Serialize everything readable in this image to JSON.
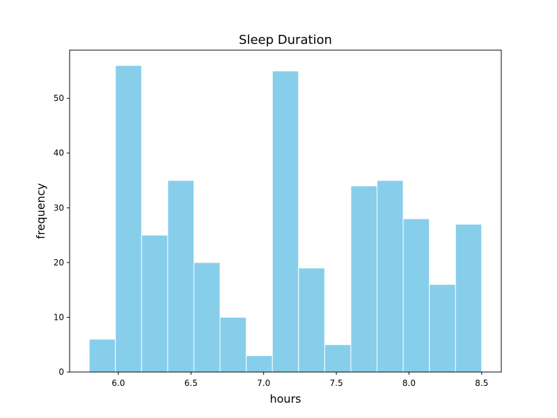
{
  "chart_data": {
    "type": "bar",
    "title": "Sleep Duration",
    "xlabel": "hours",
    "ylabel": "frequency",
    "xlim": [
      5.665,
      8.635
    ],
    "ylim": [
      0,
      58.8
    ],
    "bin_width": 0.18,
    "bin_starts": [
      5.8,
      5.98,
      6.16,
      6.34,
      6.52,
      6.7,
      6.88,
      7.06,
      7.24,
      7.42,
      7.6,
      7.78,
      7.96,
      8.14,
      8.32
    ],
    "values": [
      6,
      56,
      25,
      35,
      20,
      10,
      3,
      55,
      19,
      5,
      34,
      35,
      28,
      16,
      27
    ],
    "xticks": [
      6.0,
      6.5,
      7.0,
      7.5,
      8.0,
      8.5
    ],
    "xtick_labels": [
      "6.0",
      "6.5",
      "7.0",
      "7.5",
      "8.0",
      "8.5"
    ],
    "yticks": [
      0,
      10,
      20,
      30,
      40,
      50
    ],
    "ytick_labels": [
      "0",
      "10",
      "20",
      "30",
      "40",
      "50"
    ],
    "bar_color": "#87ceeb",
    "bar_edge_color": "#ffffff",
    "grid": false,
    "legend": "none"
  }
}
